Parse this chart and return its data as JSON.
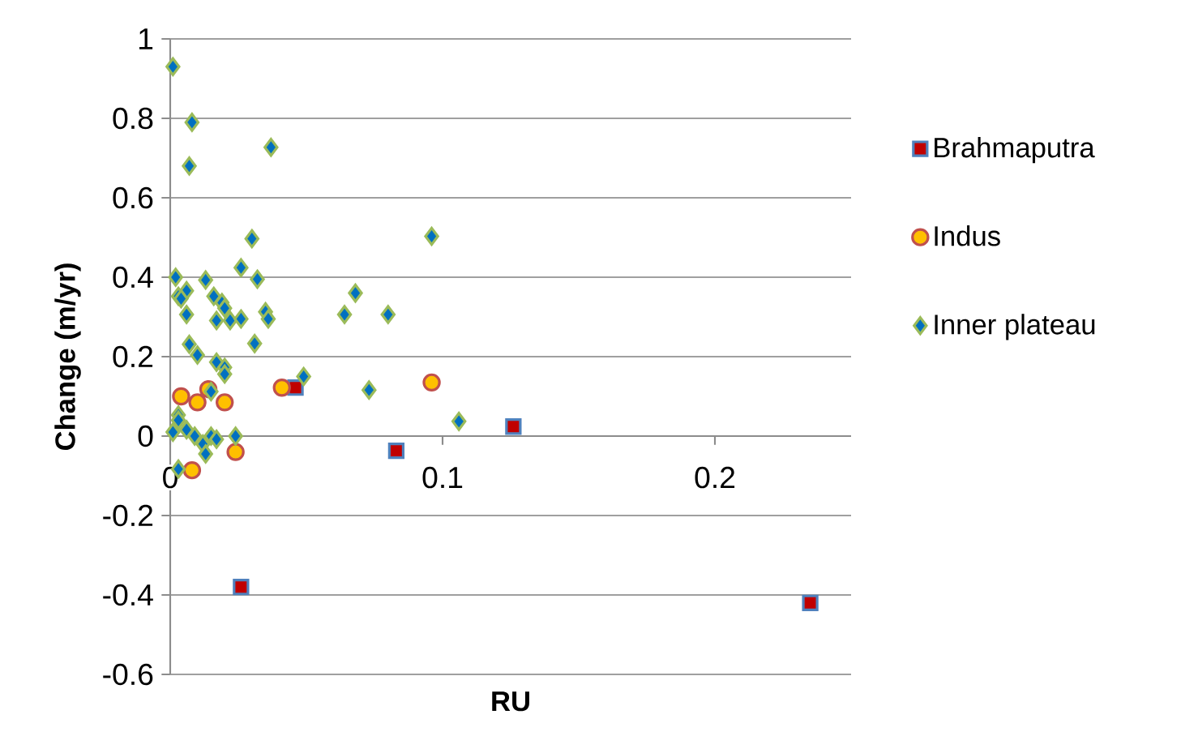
{
  "chart_data": {
    "type": "scatter",
    "xlabel": "RU",
    "ylabel": "Change (m/yr)",
    "xlim": [
      0,
      0.25
    ],
    "ylim": [
      -0.6,
      1
    ],
    "xticks": [
      0,
      0.1,
      0.2
    ],
    "yticks": [
      -0.6,
      -0.4,
      -0.2,
      0,
      0.2,
      0.4,
      0.6,
      0.8,
      1
    ],
    "grid": "y",
    "legend": "right",
    "series": [
      {
        "name": "Brahmaputra",
        "color": "#c00000",
        "marker": "square",
        "x": [
          0.046,
          0.083,
          0.026,
          0.126,
          0.235
        ],
        "values": [
          0.122,
          -0.037,
          -0.38,
          0.024,
          -0.42
        ]
      },
      {
        "name": "Indus",
        "color": "#ffc000",
        "marker": "circle",
        "x": [
          0.004,
          0.01,
          0.014,
          0.02,
          0.041,
          0.024,
          0.008,
          0.096
        ],
        "values": [
          0.1,
          0.085,
          0.118,
          0.085,
          0.122,
          -0.04,
          -0.086,
          0.135
        ]
      },
      {
        "name": "Inner plateau",
        "color": "#0070c0",
        "marker": "diamond",
        "x": [
          0.001,
          0.008,
          0.007,
          0.037,
          0.002,
          0.003,
          0.006,
          0.004,
          0.006,
          0.013,
          0.016,
          0.019,
          0.017,
          0.02,
          0.022,
          0.026,
          0.026,
          0.03,
          0.032,
          0.035,
          0.036,
          0.031,
          0.007,
          0.01,
          0.017,
          0.02,
          0.02,
          0.064,
          0.068,
          0.08,
          0.096,
          0.049,
          0.073,
          0.106,
          0.015,
          0.003,
          0.003,
          0.001,
          0.006,
          0.009,
          0.012,
          0.013,
          0.015,
          0.017,
          0.024,
          0.003
        ],
        "values": [
          0.93,
          0.79,
          0.68,
          0.727,
          0.4,
          0.352,
          0.366,
          0.346,
          0.306,
          0.393,
          0.352,
          0.336,
          0.291,
          0.322,
          0.291,
          0.295,
          0.424,
          0.497,
          0.395,
          0.313,
          0.295,
          0.233,
          0.231,
          0.204,
          0.186,
          0.173,
          0.156,
          0.306,
          0.36,
          0.306,
          0.503,
          0.15,
          0.116,
          0.037,
          0.112,
          0.053,
          0.04,
          0.01,
          0.016,
          0.0,
          -0.02,
          -0.045,
          0.0,
          -0.008,
          0.0,
          -0.083
        ]
      }
    ]
  }
}
